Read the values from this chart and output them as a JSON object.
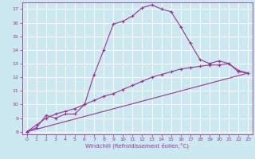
{
  "bg_color": "#cce8f0",
  "grid_color": "#ffffff",
  "line_color": "#993399",
  "xlabel": "Windchill (Refroidissement éolien,°C)",
  "xlim": [
    -0.5,
    23.5
  ],
  "ylim": [
    7.8,
    17.5
  ],
  "xticks": [
    0,
    1,
    2,
    3,
    4,
    5,
    6,
    7,
    8,
    9,
    10,
    11,
    12,
    13,
    14,
    15,
    16,
    17,
    18,
    19,
    20,
    21,
    22,
    23
  ],
  "yticks": [
    8,
    9,
    10,
    11,
    12,
    13,
    14,
    15,
    16,
    17
  ],
  "line1_x": [
    0,
    1,
    2,
    3,
    4,
    5,
    6,
    7,
    8,
    9,
    10,
    11,
    12,
    13,
    14,
    15,
    16,
    17,
    18,
    19,
    20,
    21,
    22,
    23
  ],
  "line1_y": [
    8.0,
    8.3,
    9.2,
    9.0,
    9.3,
    9.3,
    10.0,
    12.2,
    14.0,
    15.9,
    16.1,
    16.5,
    17.1,
    17.3,
    17.0,
    16.8,
    15.7,
    14.5,
    13.3,
    13.0,
    13.2,
    13.0,
    12.5,
    12.3
  ],
  "line2_x": [
    0,
    1,
    2,
    3,
    4,
    5,
    6,
    7,
    8,
    9,
    10,
    11,
    12,
    13,
    14,
    15,
    16,
    17,
    18,
    19,
    20,
    21,
    22,
    23
  ],
  "line2_y": [
    8.0,
    8.5,
    9.0,
    9.3,
    9.5,
    9.7,
    10.0,
    10.3,
    10.6,
    10.8,
    11.1,
    11.4,
    11.7,
    12.0,
    12.2,
    12.4,
    12.6,
    12.7,
    12.8,
    12.9,
    12.9,
    13.0,
    12.4,
    12.3
  ],
  "line3_x": [
    0,
    23
  ],
  "line3_y": [
    8.0,
    12.3
  ]
}
